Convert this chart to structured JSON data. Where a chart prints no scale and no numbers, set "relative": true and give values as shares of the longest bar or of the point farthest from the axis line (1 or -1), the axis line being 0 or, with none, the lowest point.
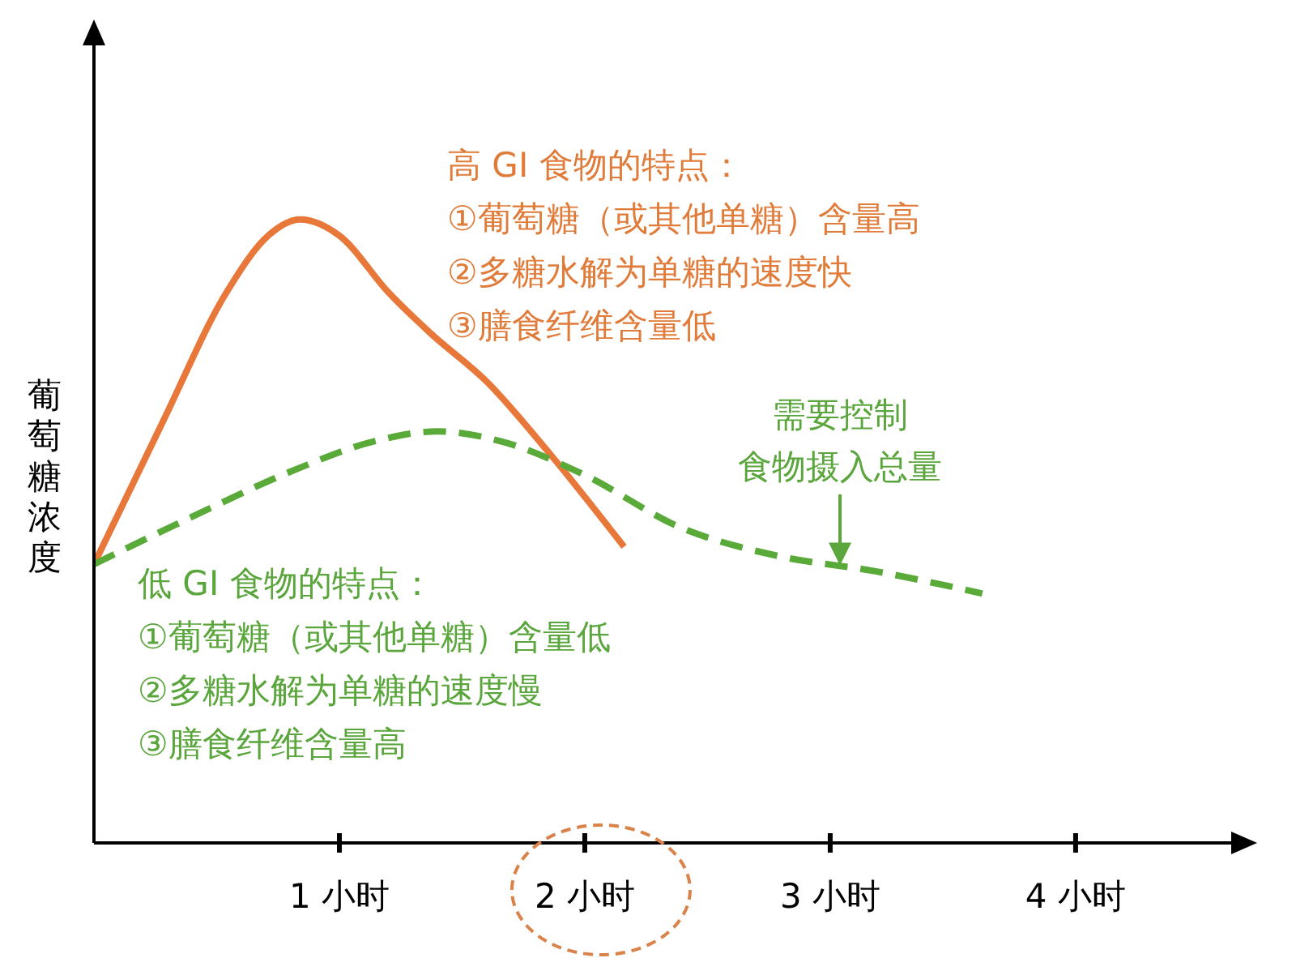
{
  "chart_data": {
    "type": "line",
    "relative": true,
    "ylabel": "葡萄糖浓度",
    "xlim": [
      0,
      4.7
    ],
    "xticks": [
      {
        "value": 1,
        "label": "1 小时"
      },
      {
        "value": 2,
        "label": "2 小时"
      },
      {
        "value": 3,
        "label": "3 小时"
      },
      {
        "value": 4,
        "label": "4 小时"
      }
    ],
    "series": [
      {
        "color": "#e8773a",
        "line_style": "solid",
        "x": [
          0,
          0.28,
          0.54,
          0.71,
          0.84,
          1.0,
          1.2,
          1.37,
          1.6,
          1.86,
          2.16
        ],
        "values": [
          0.447,
          0.675,
          0.883,
          0.974,
          1,
          0.974,
          0.883,
          0.818,
          0.74,
          0.623,
          0.475
        ]
      },
      {
        "color": "#5aaa3a",
        "line_style": "dashed",
        "x": [
          0,
          0.41,
          0.81,
          1.14,
          1.4,
          1.66,
          1.99,
          2.39,
          2.79,
          3.18,
          3.62
        ],
        "values": [
          0.447,
          0.525,
          0.597,
          0.644,
          0.66,
          0.644,
          0.592,
          0.506,
          0.46,
          0.436,
          0.4
        ]
      }
    ],
    "annotations": [
      "高 GI 食物的特点：\n①葡萄糖（或其他单糖）含量高\n②多糖水解为单糖的速度快\n③膳食纤维含量低",
      "低 GI 食物的特点：\n①葡萄糖（或其他单糖）含量低\n②多糖水解为单糖的速度慢\n③膳食纤维含量高",
      "需要控制",
      {
        "text": "食物摄入总量",
        "x": 3.04,
        "y": 0.44
      }
    ]
  }
}
